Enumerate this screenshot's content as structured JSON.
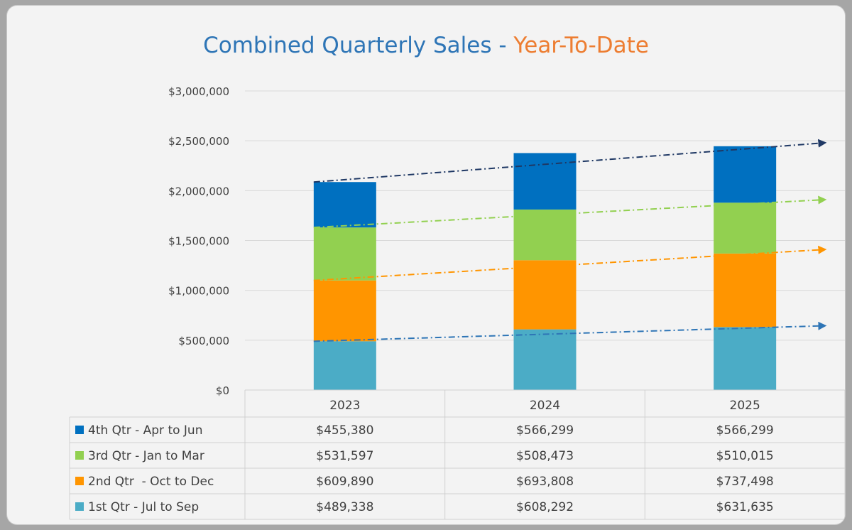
{
  "chart_data": {
    "type": "bar",
    "stacked": true,
    "title": {
      "part1": "Combined Quarterly Sales - ",
      "part2": "Year-To-Date"
    },
    "categories": [
      "2023",
      "2024",
      "2025"
    ],
    "ylim": [
      0,
      3000000
    ],
    "yticks": [
      {
        "value": 0,
        "label": "$0"
      },
      {
        "value": 500000,
        "label": "$500,000"
      },
      {
        "value": 1000000,
        "label": "$1,000,000"
      },
      {
        "value": 1500000,
        "label": "$1,500,000"
      },
      {
        "value": 2000000,
        "label": "$2,000,000"
      },
      {
        "value": 2500000,
        "label": "$2,500,000"
      },
      {
        "value": 3000000,
        "label": "$3,000,000"
      }
    ],
    "grid": true,
    "legend": "data-table",
    "series": [
      {
        "name": "1st Qtr - Jul to Sep",
        "color": "#4bacc6",
        "values": [
          489338,
          608292,
          631635
        ],
        "labels": [
          "$489,338",
          "$608,292",
          "$631,635"
        ]
      },
      {
        "name": "2nd Qtr  - Oct to Dec",
        "color": "#ff9500",
        "values": [
          609890,
          693808,
          737498
        ],
        "labels": [
          "$609,890",
          "$693,808",
          "$737,498"
        ]
      },
      {
        "name": "3rd Qtr - Jan to Mar",
        "color": "#92d050",
        "values": [
          531597,
          508473,
          510015
        ],
        "labels": [
          "$531,597",
          "$508,473",
          "$510,015"
        ]
      },
      {
        "name": "4th Qtr - Apr to Jun",
        "color": "#0070c0",
        "values": [
          455380,
          566299,
          566299
        ],
        "labels": [
          "$455,380",
          "$566,299",
          "$566,299"
        ]
      }
    ],
    "trendlines": [
      {
        "series": "1st Qtr - Jul to Sep",
        "color": "#2e75b6",
        "start": 489338,
        "end": 645000
      },
      {
        "series": "2nd Qtr  - Oct to Dec",
        "color": "#ff9500",
        "start": 1099228,
        "end": 1410000
      },
      {
        "series": "3rd Qtr - Jan to Mar",
        "color": "#92d050",
        "start": 1630825,
        "end": 1910000
      },
      {
        "series": "4th Qtr - Apr to Jun",
        "color": "#1f3864",
        "start": 2086205,
        "end": 2480000
      }
    ],
    "table_row_order": [
      "4th Qtr - Apr to Jun",
      "3rd Qtr - Jan to Mar",
      "2nd Qtr  - Oct to Dec",
      "1st Qtr - Jul to Sep"
    ]
  }
}
